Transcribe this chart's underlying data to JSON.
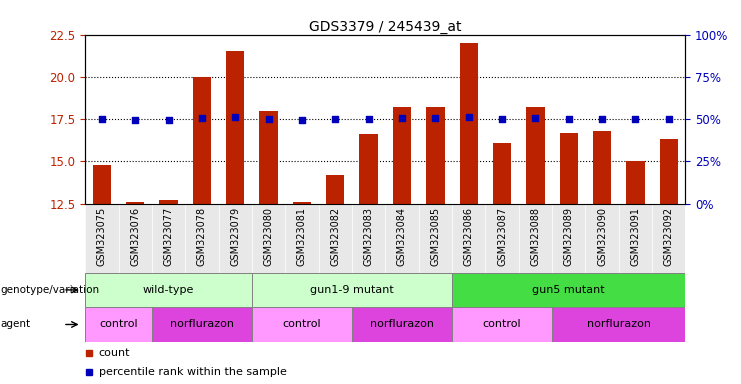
{
  "title": "GDS3379 / 245439_at",
  "samples": [
    "GSM323075",
    "GSM323076",
    "GSM323077",
    "GSM323078",
    "GSM323079",
    "GSM323080",
    "GSM323081",
    "GSM323082",
    "GSM323083",
    "GSM323084",
    "GSM323085",
    "GSM323086",
    "GSM323087",
    "GSM323088",
    "GSM323089",
    "GSM323090",
    "GSM323091",
    "GSM323092"
  ],
  "counts": [
    14.8,
    12.6,
    12.7,
    20.0,
    21.5,
    18.0,
    12.6,
    14.2,
    16.6,
    18.2,
    18.2,
    22.0,
    16.1,
    18.2,
    16.7,
    16.8,
    15.0,
    16.3
  ],
  "percentile_values": [
    17.5,
    17.42,
    17.42,
    17.57,
    17.6,
    17.53,
    17.45,
    17.48,
    17.5,
    17.56,
    17.56,
    17.62,
    17.5,
    17.56,
    17.5,
    17.5,
    17.5,
    17.52
  ],
  "ylim_left": [
    12.5,
    22.5
  ],
  "ylim_right": [
    0,
    100
  ],
  "yticks_left": [
    12.5,
    15.0,
    17.5,
    20.0,
    22.5
  ],
  "yticks_right": [
    0,
    25,
    50,
    75,
    100
  ],
  "ytick_labels_right": [
    "0%",
    "25%",
    "50%",
    "75%",
    "100%"
  ],
  "bar_color": "#bb2200",
  "dot_color": "#0000bb",
  "genotype_groups": [
    {
      "label": "wild-type",
      "start": 0,
      "end": 5,
      "color": "#ccffcc"
    },
    {
      "label": "gun1-9 mutant",
      "start": 5,
      "end": 11,
      "color": "#ccffcc"
    },
    {
      "label": "gun5 mutant",
      "start": 11,
      "end": 18,
      "color": "#44dd44"
    }
  ],
  "agent_groups": [
    {
      "label": "control",
      "start": 0,
      "end": 2,
      "color": "#ff99ff"
    },
    {
      "label": "norflurazon",
      "start": 2,
      "end": 5,
      "color": "#dd44dd"
    },
    {
      "label": "control",
      "start": 5,
      "end": 8,
      "color": "#ff99ff"
    },
    {
      "label": "norflurazon",
      "start": 8,
      "end": 11,
      "color": "#dd44dd"
    },
    {
      "label": "control",
      "start": 11,
      "end": 14,
      "color": "#ff99ff"
    },
    {
      "label": "norflurazon",
      "start": 14,
      "end": 18,
      "color": "#dd44dd"
    }
  ],
  "genotype_label": "genotype/variation",
  "agent_label": "agent",
  "legend_count": "count",
  "legend_percentile": "percentile rank within the sample"
}
